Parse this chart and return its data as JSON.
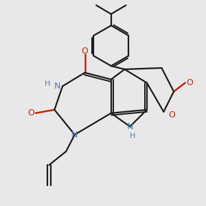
{
  "background_color": "#e8e8e8",
  "bond_color": "#1a1a1a",
  "n_color": "#4a7fb5",
  "o_color": "#cc2200",
  "line_width": 1.6,
  "figsize": [
    3.0,
    3.0
  ],
  "dpi": 100,
  "xlim": [
    0,
    3.0
  ],
  "ylim": [
    0,
    3.0
  ]
}
